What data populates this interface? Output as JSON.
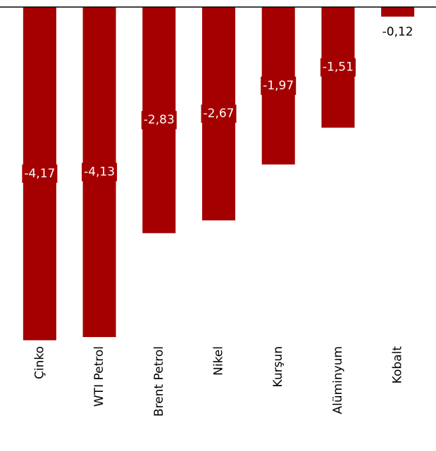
{
  "chart_data": {
    "type": "bar",
    "categories": [
      "Çinko",
      "WTI Petrol",
      "Brent Petrol",
      "Nikel",
      "Kurşun",
      "Alüminyum",
      "Kobalt"
    ],
    "values": [
      -4.17,
      -4.13,
      -2.83,
      -2.67,
      -1.97,
      -1.51,
      -0.12
    ],
    "value_labels": [
      "-4,17",
      "-4,13",
      "-2,83",
      "-2,67",
      "-1,97",
      "-1,51",
      "-0,12"
    ],
    "color": "#a50000",
    "ylim": [
      -4.2,
      0
    ]
  }
}
